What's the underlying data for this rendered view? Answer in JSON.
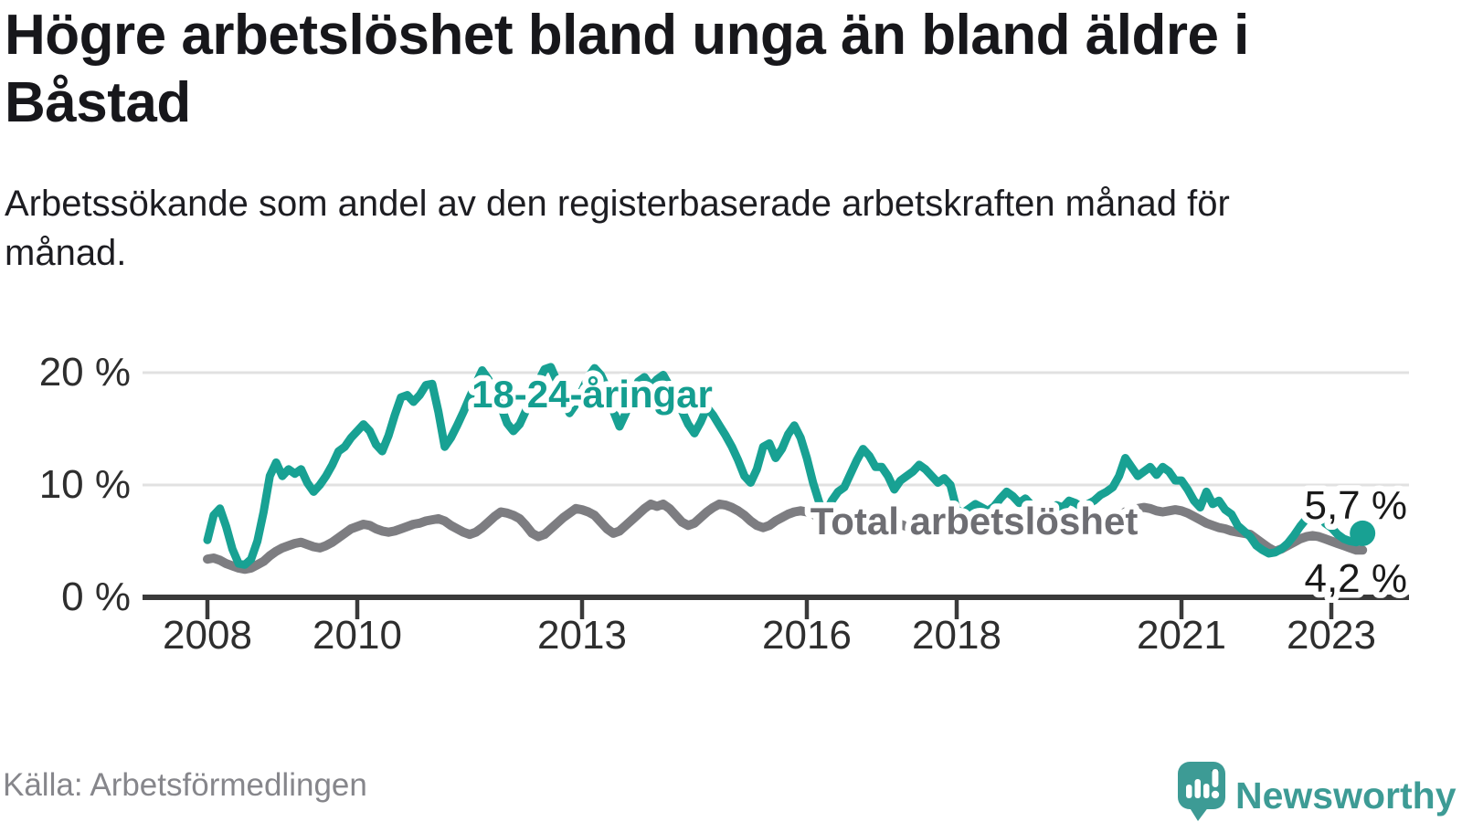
{
  "header": {
    "title": "Högre arbetslöshet bland unga än bland äldre i Båstad",
    "subtitle": "Arbetssökande som andel av den registerbaserade arbetskraften månad för månad."
  },
  "footer": {
    "source": "Källa: Arbetsförmedlingen",
    "brand": "Newsworthy"
  },
  "colors": {
    "youth_line": "#18a193",
    "total_line": "#7d7d81",
    "youth_label": "#149e90",
    "total_label": "#6e6e73",
    "grid": "#e1e1e1",
    "axis": "#3a3a3a",
    "tick_label": "#2e2e2e",
    "end_label": "#1a1a1a",
    "brand_teal": "#3d9b95",
    "brand_teal_dark": "#2e7e79"
  },
  "chart_data": {
    "type": "line",
    "unit": "%",
    "x_start": "2008-01",
    "x_end": "2023-06",
    "interval": "monthly",
    "ylim": [
      0,
      22
    ],
    "yticks": [
      0,
      10,
      20
    ],
    "ytick_labels": [
      "0 %",
      "10 %",
      "20 %"
    ],
    "xticks": [
      2008,
      2010,
      2013,
      2016,
      2018,
      2021,
      2023
    ],
    "xtick_labels": [
      "2008",
      "2010",
      "2013",
      "2016",
      "2018",
      "2021",
      "2023"
    ],
    "grid": "horizontal-only",
    "legend_position": "inline-labels",
    "series": [
      {
        "name": "Total arbetslöshet",
        "end_label": "4,2 %",
        "end_value": 4.2,
        "values": [
          3.4,
          3.5,
          3.3,
          3.0,
          2.8,
          2.6,
          2.5,
          2.6,
          2.9,
          3.2,
          3.7,
          4.1,
          4.4,
          4.6,
          4.8,
          4.9,
          4.7,
          4.5,
          4.4,
          4.6,
          4.9,
          5.3,
          5.7,
          6.1,
          6.3,
          6.5,
          6.4,
          6.1,
          5.9,
          5.8,
          5.9,
          6.1,
          6.3,
          6.5,
          6.6,
          6.8,
          6.9,
          7.0,
          6.8,
          6.4,
          6.1,
          5.8,
          5.6,
          5.8,
          6.2,
          6.7,
          7.2,
          7.6,
          7.5,
          7.3,
          7.0,
          6.4,
          5.7,
          5.4,
          5.6,
          6.1,
          6.6,
          7.1,
          7.5,
          7.9,
          7.8,
          7.6,
          7.3,
          6.7,
          6.1,
          5.7,
          5.9,
          6.4,
          6.9,
          7.4,
          7.9,
          8.3,
          8.1,
          8.3,
          7.9,
          7.3,
          6.7,
          6.4,
          6.6,
          7.1,
          7.6,
          8.0,
          8.3,
          8.2,
          8.0,
          7.7,
          7.3,
          6.8,
          6.4,
          6.2,
          6.4,
          6.8,
          7.1,
          7.4,
          7.6,
          7.7,
          7.6,
          7.4,
          7.1,
          6.7,
          6.4,
          6.3,
          6.5,
          6.8,
          7.0,
          7.2,
          7.3,
          7.4,
          7.3,
          7.1,
          6.8,
          6.5,
          6.3,
          6.2,
          6.4,
          6.7,
          6.9,
          7.0,
          7.1,
          7.2,
          7.0,
          6.8,
          6.6,
          6.3,
          6.1,
          6.0,
          6.2,
          6.4,
          6.5,
          6.6,
          6.6,
          6.7,
          6.6,
          6.5,
          6.3,
          6.1,
          6.0,
          5.9,
          6.1,
          6.3,
          6.4,
          6.5,
          6.6,
          6.7,
          6.8,
          6.9,
          7.2,
          7.6,
          7.8,
          7.9,
          8.0,
          7.9,
          7.7,
          7.6,
          7.7,
          7.8,
          7.7,
          7.5,
          7.2,
          6.9,
          6.6,
          6.4,
          6.2,
          6.1,
          5.9,
          5.8,
          5.7,
          5.6,
          5.2,
          4.8,
          4.4,
          4.1,
          4.3,
          4.6,
          4.9,
          5.2,
          5.4,
          5.5,
          5.4,
          5.2,
          5.0,
          4.8,
          4.6,
          4.4,
          4.2,
          4.2
        ]
      },
      {
        "name": "18-24-åringar",
        "end_label": "5,7 %",
        "end_value": 5.7,
        "values": [
          5.1,
          7.3,
          7.9,
          6.3,
          4.3,
          3.0,
          2.9,
          3.4,
          5.0,
          7.6,
          10.8,
          12.0,
          10.8,
          11.4,
          11.0,
          11.4,
          10.2,
          9.4,
          10.0,
          10.8,
          11.8,
          13.0,
          13.4,
          14.2,
          14.8,
          15.4,
          14.8,
          13.6,
          13.0,
          14.4,
          16.2,
          17.8,
          18.0,
          17.4,
          18.0,
          18.9,
          19.0,
          16.5,
          13.4,
          14.2,
          15.3,
          16.5,
          17.8,
          19.0,
          20.2,
          19.4,
          18.2,
          17.0,
          15.5,
          14.8,
          15.4,
          16.6,
          18.0,
          19.2,
          20.3,
          20.5,
          19.2,
          17.6,
          16.4,
          17.2,
          18.4,
          19.6,
          20.4,
          19.8,
          18.6,
          16.6,
          15.2,
          16.4,
          18.0,
          19.2,
          19.6,
          18.8,
          19.4,
          19.8,
          18.8,
          17.6,
          16.6,
          15.4,
          14.6,
          15.6,
          16.9,
          16.2,
          15.3,
          14.4,
          13.4,
          12.2,
          10.8,
          10.2,
          11.4,
          13.4,
          13.7,
          12.4,
          13.2,
          14.5,
          15.3,
          14.2,
          12.4,
          10.2,
          8.4,
          7.5,
          8.6,
          9.4,
          9.8,
          11.0,
          12.2,
          13.2,
          12.6,
          11.6,
          11.6,
          10.8,
          9.6,
          10.4,
          10.8,
          11.2,
          11.8,
          11.4,
          10.8,
          10.2,
          10.6,
          10.0,
          7.8,
          7.5,
          7.9,
          8.3,
          8.0,
          7.7,
          8.1,
          8.8,
          9.4,
          9.0,
          8.4,
          8.8,
          8.2,
          7.8,
          7.6,
          7.9,
          8.2,
          8.0,
          8.6,
          8.4,
          8.0,
          8.3,
          8.6,
          9.1,
          9.4,
          9.8,
          10.8,
          12.4,
          11.6,
          10.8,
          11.2,
          11.6,
          10.9,
          11.6,
          11.2,
          10.4,
          10.4,
          9.6,
          8.6,
          8.0,
          9.4,
          8.3,
          8.6,
          7.8,
          7.4,
          6.4,
          5.9,
          5.4,
          4.6,
          4.2,
          3.9,
          4.0,
          4.3,
          4.8,
          5.5,
          6.3,
          7.0,
          8.0,
          7.4,
          6.6,
          6.2,
          5.6,
          5.2,
          5.0,
          4.9,
          5.7
        ]
      }
    ],
    "annotations": [
      {
        "text": "18-24-åringar",
        "series": "18-24-åringar"
      },
      {
        "text": "Total arbetslöshet",
        "series": "Total arbetslöshet"
      }
    ]
  }
}
